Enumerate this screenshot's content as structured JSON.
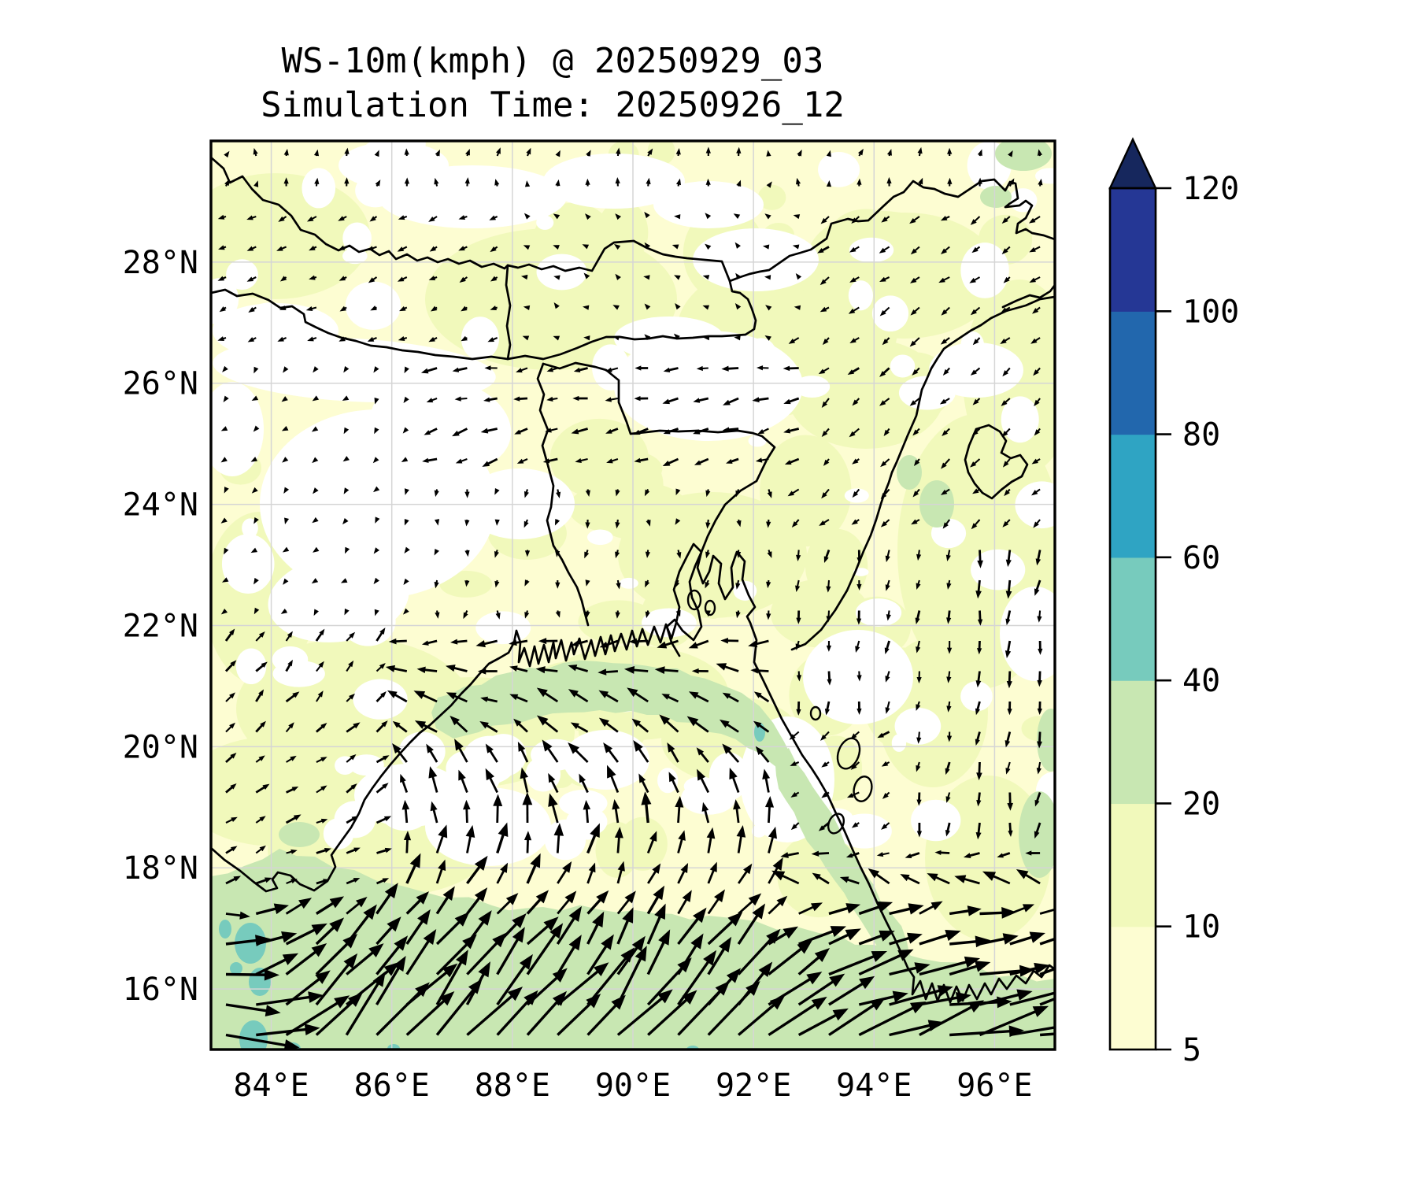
{
  "title": {
    "line1": "WS-10m(kmph) @ 20250929_03",
    "line2": "Simulation Time: 20250926_12"
  },
  "axes": {
    "x_ticks": [
      "84°E",
      "86°E",
      "88°E",
      "90°E",
      "92°E",
      "94°E",
      "96°E"
    ],
    "x_tick_lons": [
      84,
      86,
      88,
      90,
      92,
      94,
      96
    ],
    "y_ticks": [
      "16°N",
      "18°N",
      "20°N",
      "22°N",
      "24°N",
      "26°N",
      "28°N"
    ],
    "y_tick_lats": [
      16,
      18,
      20,
      22,
      24,
      26,
      28
    ]
  },
  "colorbar": {
    "tick_labels": [
      "5",
      "10",
      "20",
      "40",
      "60",
      "80",
      "100",
      "120"
    ],
    "tick_values": [
      5,
      10,
      20,
      40,
      60,
      80,
      100,
      120
    ],
    "bands": [
      {
        "range": "5-10",
        "color": "#fdfdd2"
      },
      {
        "range": "10-20",
        "color": "#f1f9bb"
      },
      {
        "range": "20-40",
        "color": "#c8e7b2"
      },
      {
        "range": "40-60",
        "color": "#77cbbd"
      },
      {
        "range": "60-80",
        "color": "#2fa4c3"
      },
      {
        "range": "80-100",
        "color": "#2267ad"
      },
      {
        "range": "100-120",
        "color": "#253795"
      }
    ],
    "over_color": "#16275d",
    "extend": "max"
  },
  "chart_data": {
    "type": "heatmap",
    "subtype": "wind-speed-filled-contour-with-quiver",
    "title": "WS-10m(kmph) @ 20250929_03",
    "subtitle": "Simulation Time: 20250926_12",
    "variable": "10 m wind speed",
    "units": "kmph",
    "valid_time": "20250929_03",
    "simulation_time": "20250926_12",
    "extent": {
      "lon_min": 83,
      "lon_max": 97,
      "lat_min": 15,
      "lat_max": 30
    },
    "xtick_labels": [
      "84°E",
      "86°E",
      "88°E",
      "90°E",
      "92°E",
      "94°E",
      "96°E"
    ],
    "ytick_labels": [
      "16°N",
      "18°N",
      "20°N",
      "22°N",
      "24°N",
      "26°N",
      "28°N"
    ],
    "contour_levels": [
      5,
      10,
      20,
      40,
      60,
      80,
      100,
      120
    ],
    "colormap": "YlGnBu",
    "grid": true,
    "legend_position": "right-colorbar",
    "wind_regimes": [
      {
        "region": "southern Bay of Bengal (lat < 17.5N)",
        "direction": "west-southwesterly, arrows point E to NE",
        "speed_kmph": "20-35"
      },
      {
        "region": "west Bay / Odisha coast (17.5-19.5N)",
        "direction": "arrows point NE to N",
        "speed_kmph": "8-14"
      },
      {
        "region": "north Bay south of delta (20-21.5N, 87-91E)",
        "direction": "easterly, arrows point W/NW",
        "speed_kmph": "8-14"
      },
      {
        "region": "Bangladesh delta interior (22-24.5N)",
        "direction": "weak northerly, arrows point S",
        "speed_kmph": "2-6"
      },
      {
        "region": "Gangetic band (24.5-26.5N, 87-93E)",
        "direction": "easterly, arrows point W",
        "speed_kmph": "5-8"
      },
      {
        "region": "central India (83-86.5E, 21.5-26.5N)",
        "direction": "very weak, arrows point SW/S",
        "speed_kmph": "1-4"
      },
      {
        "region": "Myanmar / east of 92.5E",
        "direction": "northerly, arrows point S/SW",
        "speed_kmph": "4-8"
      },
      {
        "region": "far north Himalayan band (lat > 26.5N)",
        "direction": "weak, arrows point W/SW, N near top edge",
        "speed_kmph": "2-6"
      }
    ]
  }
}
